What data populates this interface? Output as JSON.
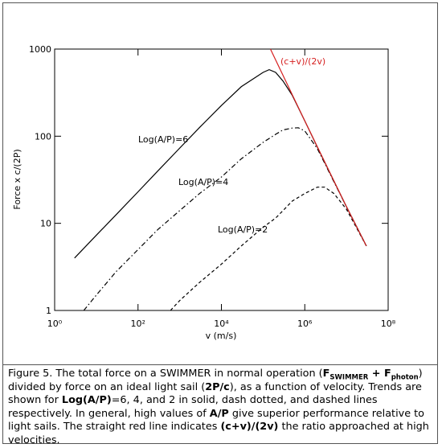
{
  "chart_data": {
    "type": "line",
    "xlabel": "v (m/s)",
    "ylabel": "Force x c/(2P)",
    "xscale": "log",
    "yscale": "log",
    "xlim": [
      1,
      100000000
    ],
    "ylim": [
      1,
      1000
    ],
    "xticks": [
      {
        "value": 1,
        "label": "10⁰"
      },
      {
        "value": 100,
        "label": "10²"
      },
      {
        "value": 10000,
        "label": "10⁴"
      },
      {
        "value": 1000000,
        "label": "10⁶"
      },
      {
        "value": 100000000,
        "label": "10⁸"
      }
    ],
    "yticks": [
      1,
      10,
      100,
      1000
    ],
    "series": [
      {
        "name": "Log(A/P)=6",
        "color": "#000000",
        "dash": "solid",
        "x": [
          3,
          10,
          30,
          100,
          300,
          1000,
          3000,
          10000,
          30000,
          100000,
          140000,
          200000,
          300000,
          500000,
          1000000,
          2000000,
          5000000,
          10000000,
          30000000
        ],
        "values": [
          4,
          7.3,
          12.6,
          23,
          40,
          73,
          126,
          225,
          370,
          540,
          580,
          540,
          430,
          295,
          150,
          75,
          30.5,
          15.5,
          5.5
        ]
      },
      {
        "name": "Log(A/P)=4",
        "color": "#000000",
        "dash": "dashdot",
        "x": [
          5,
          10,
          30,
          100,
          300,
          1000,
          3000,
          10000,
          30000,
          100000,
          200000,
          300000,
          500000,
          700000,
          1000000,
          2000000,
          3000000,
          5000000,
          10000000,
          30000000
        ],
        "values": [
          1,
          1.5,
          2.8,
          5,
          8.5,
          14,
          22,
          34,
          55,
          85,
          105,
          118,
          124,
          125,
          115,
          72,
          49,
          30,
          15.5,
          5.5
        ]
      },
      {
        "name": "Log(A/P)=2",
        "color": "#000000",
        "dash": "dashed",
        "x": [
          600,
          1000,
          3000,
          10000,
          30000,
          100000,
          200000,
          300000,
          500000,
          1000000,
          2000000,
          3000000,
          5000000,
          10000000,
          30000000
        ],
        "values": [
          1,
          1.3,
          2.1,
          3.4,
          5.5,
          9,
          11.5,
          14,
          18,
          22,
          26,
          26,
          22,
          14.5,
          5.5
        ]
      },
      {
        "name": "(c+v)/(2v)",
        "color": "#d62020",
        "dash": "solid",
        "x": [
          150000,
          1000000,
          10000000,
          30000000
        ],
        "values": [
          1000,
          150,
          15.5,
          5.5
        ]
      }
    ]
  },
  "caption": {
    "runs": [
      {
        "text": "Figure 5. The total force on a SWIMMER in normal operation ("
      },
      {
        "text": "F",
        "bold": true
      },
      {
        "text": "SWIMMER",
        "bold": true,
        "sub": true
      },
      {
        "text": " + F",
        "bold": true
      },
      {
        "text": "photon",
        "bold": true,
        "sub": true
      },
      {
        "text": ") divided by force on an ideal light sail ("
      },
      {
        "text": "2P/c",
        "bold": true
      },
      {
        "text": "), as a function of velocity. Trends are shown for "
      },
      {
        "text": "Log(A/P)",
        "bold": true
      },
      {
        "text": "=6, 4, and 2 in solid, dash dotted, and dashed lines respectively. In general, high values of "
      },
      {
        "text": "A/P",
        "bold": true
      },
      {
        "text": " give superior performance relative to light sails. The straight red line indicates "
      },
      {
        "text": "(c+v)/(2v)",
        "bold": true
      },
      {
        "text": " the ratio approached at high velocities."
      }
    ]
  }
}
